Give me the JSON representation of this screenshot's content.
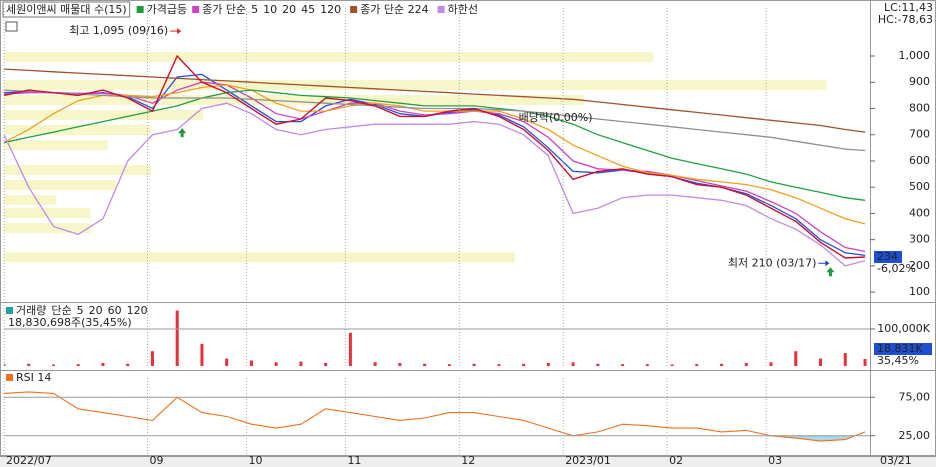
{
  "chart_data": [
    {
      "type": "line",
      "title": "세원이앤씨 매물대 수(15)",
      "legend_prefix": "종가 단순",
      "corner_labels": [
        {
          "text": "LC:11,43",
          "color": "#e0202a"
        },
        {
          "text": "HC:-78,63",
          "color": "#2040d0"
        }
      ],
      "x": [
        0,
        5,
        10,
        15,
        20,
        25,
        30,
        35,
        40,
        45,
        50,
        55,
        60,
        65,
        70,
        75,
        80,
        85,
        90,
        95,
        100,
        105,
        110,
        115,
        120,
        125,
        130,
        135,
        140,
        145,
        150,
        155,
        160,
        165,
        170,
        174
      ],
      "xlim": [
        0,
        175
      ],
      "ylim": [
        70,
        1183
      ],
      "yticks": [
        100,
        200,
        300,
        400,
        500,
        600,
        700,
        800,
        900,
        {
          "value": 1000,
          "label": "1,000"
        }
      ],
      "grid": false,
      "series": [
        {
          "color": "#c8102e",
          "values": [
            850,
            870,
            860,
            850,
            870,
            840,
            790,
            1000,
            900,
            860,
            800,
            740,
            760,
            840,
            830,
            810,
            770,
            770,
            790,
            800,
            770,
            720,
            640,
            530,
            560,
            570,
            550,
            540,
            510,
            500,
            470,
            420,
            370,
            290,
            230,
            234
          ]
        },
        {
          "name": "5",
          "color": "#2050e0",
          "values": [
            860,
            865,
            860,
            855,
            860,
            845,
            800,
            920,
            930,
            870,
            810,
            750,
            750,
            810,
            835,
            815,
            780,
            770,
            785,
            795,
            775,
            730,
            650,
            560,
            555,
            565,
            555,
            540,
            515,
            500,
            475,
            430,
            380,
            300,
            250,
            240
          ]
        },
        {
          "name": "10",
          "color": "#d040c0",
          "values": [
            855,
            860,
            860,
            858,
            858,
            850,
            820,
            870,
            900,
            890,
            840,
            780,
            760,
            790,
            820,
            820,
            790,
            775,
            780,
            790,
            780,
            750,
            690,
            600,
            570,
            565,
            560,
            545,
            525,
            505,
            485,
            445,
            400,
            330,
            270,
            255
          ]
        },
        {
          "name": "20",
          "color": "#f0a020",
          "values": [
            670,
            720,
            780,
            830,
            850,
            850,
            845,
            860,
            880,
            890,
            870,
            820,
            790,
            790,
            810,
            820,
            810,
            790,
            790,
            790,
            790,
            760,
            720,
            660,
            620,
            580,
            555,
            545,
            530,
            520,
            510,
            490,
            460,
            420,
            380,
            360
          ]
        },
        {
          "name": "45",
          "color": "#20a040",
          "values": [
            670,
            690,
            710,
            730,
            750,
            770,
            790,
            810,
            840,
            860,
            870,
            860,
            850,
            845,
            840,
            830,
            820,
            810,
            810,
            810,
            800,
            790,
            770,
            740,
            700,
            670,
            640,
            610,
            590,
            570,
            550,
            520,
            500,
            480,
            460,
            450
          ]
        },
        {
          "name": "120",
          "color": "#909090",
          "values": [
            870,
            865,
            860,
            855,
            850,
            845,
            840,
            840,
            840,
            840,
            835,
            830,
            825,
            820,
            815,
            810,
            805,
            800,
            800,
            800,
            795,
            790,
            780,
            770,
            760,
            750,
            740,
            730,
            720,
            710,
            700,
            690,
            675,
            660,
            645,
            640
          ]
        },
        {
          "name": "종가 단순 224",
          "color": "#a0522d",
          "values": [
            950,
            945,
            940,
            935,
            930,
            925,
            920,
            915,
            910,
            905,
            900,
            895,
            890,
            885,
            880,
            875,
            870,
            865,
            860,
            855,
            850,
            845,
            840,
            835,
            825,
            815,
            805,
            795,
            785,
            775,
            765,
            755,
            745,
            735,
            720,
            710
          ]
        },
        {
          "name": "하한선",
          "color": "#c08ae8",
          "values": [
            700,
            500,
            350,
            320,
            380,
            600,
            700,
            720,
            800,
            820,
            780,
            720,
            700,
            720,
            730,
            740,
            740,
            740,
            740,
            750,
            740,
            700,
            620,
            400,
            420,
            460,
            470,
            470,
            460,
            450,
            430,
            380,
            340,
            280,
            200,
            220
          ]
        }
      ],
      "markers": {
        "name": "가격급등",
        "color": "#1a9a3a",
        "x": [
          36,
          167
        ],
        "values": [
          706,
          176
        ]
      },
      "volume_profile": {
        "color": "#f6f6c8",
        "levels": [
          996,
          889,
          832,
          775,
          718,
          661,
          565,
          508,
          451,
          401,
          344,
          233
        ],
        "values": [
          75,
          95,
          67,
          23,
          17,
          12,
          17,
          13,
          6,
          10,
          10,
          59
        ]
      },
      "annotations": [
        {
          "text": "최고 1,095 (09/16)",
          "x": 36,
          "value": 1095,
          "color": "#e0202a",
          "side": "left"
        },
        {
          "text": "최저 210 (03/17)",
          "x": 167,
          "value": 210,
          "color": "#2040d0",
          "side": "left"
        },
        {
          "text": "배당락(0,00%)",
          "x": 104,
          "value": 763,
          "color": "#333333",
          "side": "right"
        }
      ],
      "last": {
        "value": 234,
        "change_label": "-6,02%"
      }
    },
    {
      "type": "bar",
      "title": "거래량",
      "legend_prefix": "단순",
      "legend_tokens": [
        {
          "text": "5",
          "color": "#d040c0"
        },
        {
          "text": "20",
          "color": "#f0a020"
        },
        {
          "text": "60",
          "color": "#20a040"
        },
        {
          "text": "120",
          "color": "#909090"
        }
      ],
      "summary": "18,830,698주(35,45%)",
      "last_label": "18,831K",
      "last_ratio": "35,45%",
      "x": [
        0,
        5,
        10,
        15,
        20,
        25,
        30,
        35,
        40,
        45,
        50,
        55,
        60,
        65,
        70,
        75,
        80,
        85,
        90,
        95,
        100,
        105,
        110,
        115,
        120,
        125,
        130,
        135,
        140,
        145,
        150,
        155,
        160,
        165,
        170,
        174
      ],
      "xlim": [
        0,
        175
      ],
      "ylim": [
        0,
        165000
      ],
      "yticks": [
        {
          "value": 100000,
          "label": "100,000K"
        }
      ],
      "color": "#e8303a",
      "values": [
        5000,
        6000,
        4000,
        5000,
        8000,
        6000,
        40000,
        150000,
        60000,
        20000,
        15000,
        10000,
        12000,
        8000,
        90000,
        10000,
        8000,
        6000,
        5000,
        6000,
        5000,
        6000,
        8000,
        10000,
        6000,
        5000,
        5000,
        4000,
        5000,
        6000,
        8000,
        10000,
        40000,
        20000,
        35000,
        18831
      ]
    },
    {
      "type": "line",
      "title": "RSI 14",
      "x": [
        0,
        5,
        10,
        15,
        20,
        25,
        30,
        35,
        40,
        45,
        50,
        55,
        60,
        65,
        70,
        75,
        80,
        85,
        90,
        95,
        100,
        105,
        110,
        115,
        120,
        125,
        130,
        135,
        140,
        145,
        150,
        155,
        160,
        165,
        170,
        174
      ],
      "xlim": [
        0,
        175
      ],
      "ylim": [
        0,
        100
      ],
      "yticks": [
        {
          "value": 75,
          "label": "75,00"
        },
        {
          "value": 25,
          "label": "25,00"
        }
      ],
      "xticks": [
        {
          "value": 0,
          "label": "2022/07"
        },
        {
          "value": 29,
          "label": "09"
        },
        {
          "value": 49,
          "label": "10"
        },
        {
          "value": 69,
          "label": "11"
        },
        {
          "value": 92,
          "label": "12"
        },
        {
          "value": 113,
          "label": "2023/01"
        },
        {
          "value": 134,
          "label": "02"
        },
        {
          "value": 154,
          "label": "03"
        }
      ],
      "date_label": "03/21",
      "color": "#f07020",
      "oversold": 25,
      "oversold_color": "#a8d8ea",
      "values": [
        80,
        82,
        80,
        60,
        55,
        50,
        45,
        75,
        55,
        50,
        40,
        35,
        40,
        60,
        55,
        50,
        45,
        48,
        55,
        55,
        50,
        45,
        35,
        25,
        30,
        40,
        38,
        35,
        35,
        30,
        32,
        25,
        22,
        18,
        20,
        30
      ]
    }
  ]
}
